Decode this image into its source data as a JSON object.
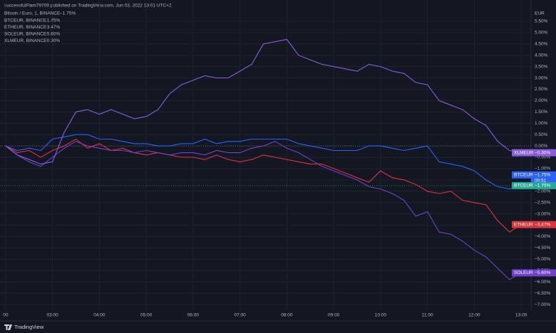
{
  "header": "successfulFlam79709 published on TradingView.com, Jun 03, 2022 13:01 UTC+2",
  "footer": "TradingView",
  "chart_data": {
    "type": "line",
    "currency": "EUR",
    "main": {
      "title": "Bitcoin / Euro, 1, BINANCE",
      "change": "−1.75%",
      "symbol": "BTCEUR",
      "value": -1.75,
      "color": "#22ab94",
      "countdown": "00:51"
    },
    "baseline": 0,
    "x": [
      2.0,
      2.25,
      2.5,
      2.75,
      3.0,
      3.25,
      3.5,
      3.75,
      4.0,
      4.25,
      4.5,
      4.75,
      5.0,
      5.25,
      5.5,
      5.75,
      6.0,
      6.25,
      6.5,
      6.75,
      7.0,
      7.25,
      7.5,
      7.75,
      8.0,
      8.25,
      8.5,
      8.75,
      9.0,
      9.25,
      9.5,
      9.75,
      10.0,
      10.25,
      10.5,
      10.75,
      11.0,
      11.25,
      11.5,
      11.75,
      12.0,
      12.25,
      12.5,
      12.75,
      13.0
    ],
    "series": [
      {
        "name": "BTCEUR",
        "legend": "BTCEUR, BINANCE",
        "change": "−1.75%",
        "color": "#2962ff",
        "values": [
          0,
          -0.2,
          -0.1,
          -0.2,
          0.3,
          0.4,
          0.5,
          0.5,
          0.3,
          0.3,
          0.2,
          0.1,
          0.1,
          0.0,
          0.0,
          0.1,
          0.1,
          0.3,
          0.1,
          0.2,
          0.2,
          0.3,
          0.3,
          0.3,
          0.3,
          0.1,
          0.0,
          -0.1,
          -0.2,
          -0.2,
          -0.2,
          0.0,
          0.0,
          -0.1,
          -0.2,
          -0.1,
          0.0,
          -0.7,
          -0.8,
          -0.9,
          -1.1,
          -1.5,
          -1.8,
          -1.9,
          -1.75
        ]
      },
      {
        "name": "ETHEUR",
        "legend": "ETHEUR, BINANCE",
        "change": "−3.47%",
        "color": "#e0323c",
        "values": [
          0,
          -0.3,
          -0.2,
          -0.5,
          -0.2,
          0.0,
          0.3,
          -0.1,
          0.1,
          -0.2,
          -0.1,
          -0.3,
          -0.4,
          -0.3,
          -0.4,
          -0.5,
          -0.5,
          -0.6,
          -0.4,
          -0.6,
          -0.7,
          -0.6,
          -0.4,
          -0.5,
          -0.6,
          -0.7,
          -0.8,
          -0.8,
          -1.0,
          -1.2,
          -1.4,
          -1.6,
          -1.1,
          -1.4,
          -1.5,
          -1.7,
          -2.0,
          -2.1,
          -2.0,
          -2.4,
          -2.5,
          -2.6,
          -3.3,
          -3.8,
          -3.47
        ]
      },
      {
        "name": "SOLEUR",
        "legend": "SOLEUR, BINANCE",
        "change": "−5.60%",
        "color": "#7240d0",
        "values": [
          0,
          -0.4,
          -0.7,
          -0.9,
          -0.5,
          -0.1,
          0.2,
          0.0,
          -0.1,
          -0.2,
          -0.2,
          -0.3,
          -0.2,
          -0.3,
          -0.4,
          -0.3,
          -0.3,
          -0.4,
          -0.2,
          -0.3,
          -0.3,
          -0.1,
          0.0,
          0.2,
          -0.1,
          -0.3,
          -0.6,
          -0.9,
          -1.1,
          -1.3,
          -1.5,
          -1.8,
          -1.9,
          -2.1,
          -2.4,
          -3.1,
          -2.9,
          -3.8,
          -3.9,
          -4.2,
          -4.6,
          -4.9,
          -5.4,
          -5.9,
          -5.6
        ]
      },
      {
        "name": "XLMEUR",
        "legend": "XLMEUR, BINANCE",
        "change": "−0.30%",
        "color": "#8a5ce0",
        "values": [
          0.0,
          -0.4,
          -0.6,
          -0.8,
          -0.7,
          0.6,
          1.5,
          1.6,
          1.4,
          1.6,
          1.4,
          1.2,
          1.3,
          1.6,
          2.3,
          2.7,
          2.9,
          3.1,
          3.0,
          3.0,
          3.3,
          3.6,
          4.5,
          4.6,
          4.7,
          4.0,
          3.8,
          3.6,
          3.5,
          3.4,
          3.3,
          3.6,
          3.5,
          3.3,
          3.2,
          2.8,
          2.7,
          2.0,
          1.8,
          1.6,
          1.2,
          0.9,
          0.2,
          -0.2,
          -0.3
        ]
      }
    ],
    "xlim": [
      1.88,
      13.21
    ],
    "xticks": [
      {
        "value": 2,
        "label": "00"
      },
      {
        "value": 3,
        "label": "03:00"
      },
      {
        "value": 4,
        "label": "04:00"
      },
      {
        "value": 5,
        "label": "05:00"
      },
      {
        "value": 6,
        "label": "06:00"
      },
      {
        "value": 7,
        "label": "07:00"
      },
      {
        "value": 8,
        "label": "08:00"
      },
      {
        "value": 9,
        "label": "09:00"
      },
      {
        "value": 10,
        "label": "10:00"
      },
      {
        "value": 11,
        "label": "11:00"
      },
      {
        "value": 12,
        "label": "12:00"
      },
      {
        "value": 13,
        "label": "13:00"
      }
    ],
    "ylim": [
      -7.25,
      6.0
    ],
    "yticks": [
      {
        "value": 5.5,
        "label": "5.50%"
      },
      {
        "value": 5.0,
        "label": "5.00%"
      },
      {
        "value": 4.5,
        "label": "4.50%"
      },
      {
        "value": 4.0,
        "label": "4.00%"
      },
      {
        "value": 3.5,
        "label": "3.50%"
      },
      {
        "value": 3.0,
        "label": "3.00%"
      },
      {
        "value": 2.5,
        "label": "2.50%"
      },
      {
        "value": 2.0,
        "label": "2.00%"
      },
      {
        "value": 1.5,
        "label": "1.50%"
      },
      {
        "value": 1.0,
        "label": "1.00%"
      },
      {
        "value": 0.5,
        "label": "0.50%"
      },
      {
        "value": 0,
        "label": "0.00%"
      },
      {
        "value": -0.5,
        "label": "−0.50%"
      },
      {
        "value": -1.0,
        "label": "−1.00%"
      },
      {
        "value": -1.5,
        "label": "−1.50%"
      },
      {
        "value": -2.0,
        "label": "−2.00%"
      },
      {
        "value": -2.5,
        "label": "−2.50%"
      },
      {
        "value": -3.0,
        "label": "−3.00%"
      },
      {
        "value": -3.5,
        "label": "−3.50%"
      },
      {
        "value": -4.0,
        "label": "−4.00%"
      },
      {
        "value": -4.5,
        "label": "−4.50%"
      },
      {
        "value": -5.0,
        "label": "−5.00%"
      },
      {
        "value": -5.5,
        "label": "−5.50%"
      },
      {
        "value": -6.0,
        "label": "−6.00%"
      },
      {
        "value": -6.5,
        "label": "−6.50%"
      },
      {
        "value": -7.0,
        "label": "−7.00%"
      }
    ],
    "grid": true
  }
}
